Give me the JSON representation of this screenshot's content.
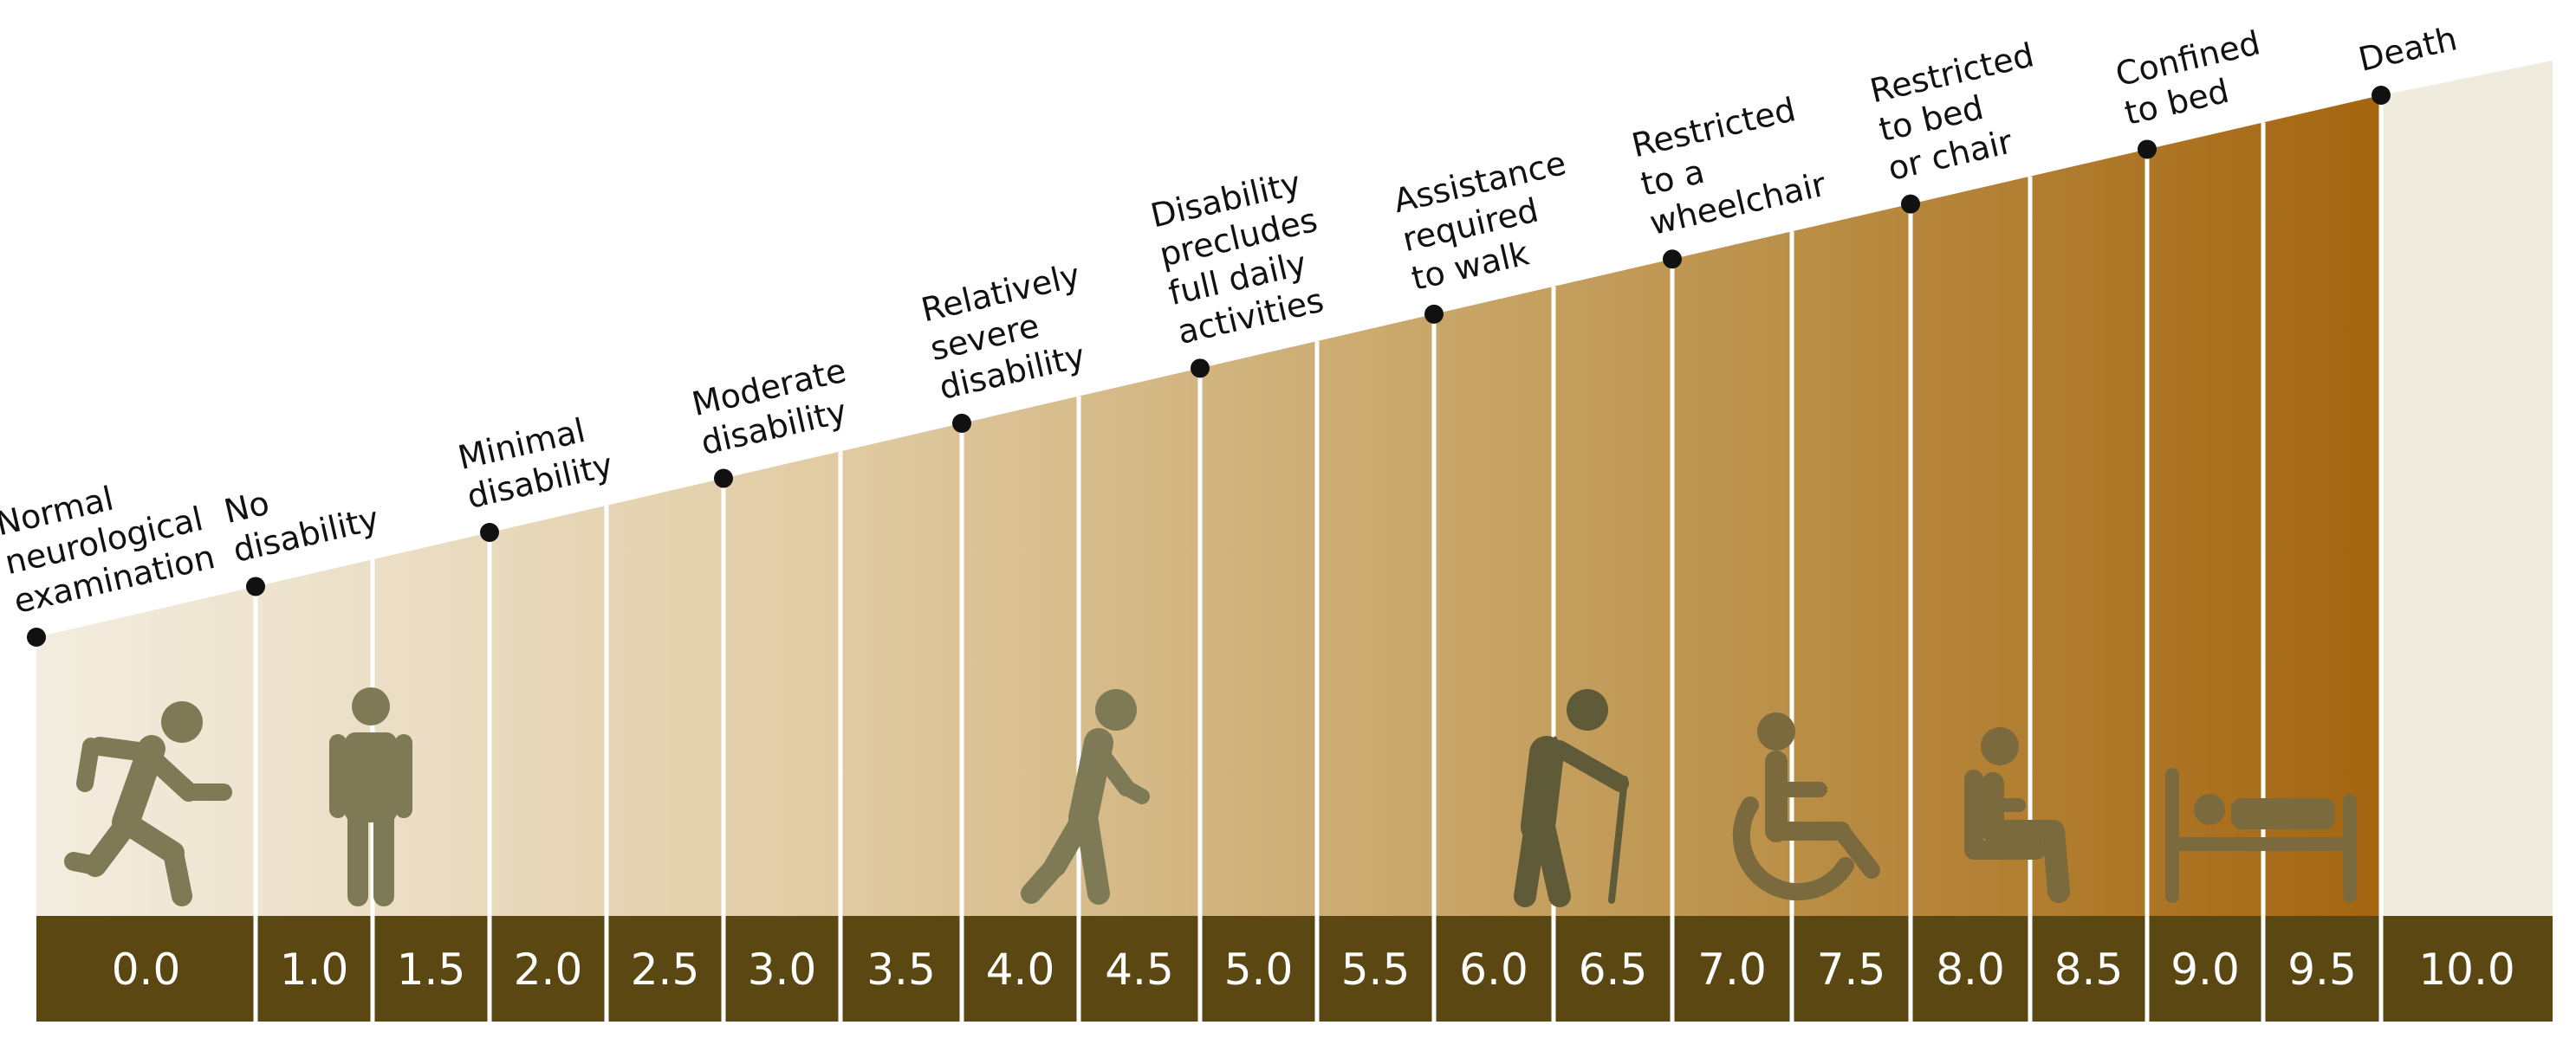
{
  "scale": {
    "scores": [
      "0.0",
      "1.0",
      "1.5",
      "2.0",
      "2.5",
      "3.0",
      "3.5",
      "4.0",
      "4.5",
      "5.0",
      "5.5",
      "6.0",
      "6.5",
      "7.0",
      "7.5",
      "8.0",
      "8.5",
      "9.0",
      "9.5",
      "10.0"
    ]
  },
  "milestones": [
    {
      "score": "0.0",
      "label": "Normal\nneurological\nexamination"
    },
    {
      "score": "1.0",
      "label": "No\ndisability"
    },
    {
      "score": "2.0",
      "label": "Minimal\ndisability"
    },
    {
      "score": "3.0",
      "label": "Moderate\ndisability"
    },
    {
      "score": "4.0",
      "label": "Relatively\nsevere\ndisability"
    },
    {
      "score": "5.0",
      "label": "Disability\nprecludes\nfull daily\nactivities"
    },
    {
      "score": "6.0",
      "label": "Assistance\nrequired\nto walk"
    },
    {
      "score": "7.0",
      "label": "Restricted\nto a\nwheelchair"
    },
    {
      "score": "8.0",
      "label": "Restricted\nto bed\nor chair"
    },
    {
      "score": "9.0",
      "label": "Confined\nto bed"
    },
    {
      "score": "10.0",
      "label": "Death"
    }
  ],
  "icons": [
    "running-person-icon",
    "standing-person-icon",
    "walking-person-icon",
    "person-with-cane-icon",
    "wheelchair-icon",
    "seated-person-icon",
    "bed-icon"
  ],
  "colors": {
    "gradient_start": "#f3ede0",
    "gradient_end": "#a4650f",
    "score_bar": "#5b4712",
    "icon": "#7d7a55",
    "final_zone": "#efecde",
    "dot": "#111111"
  }
}
